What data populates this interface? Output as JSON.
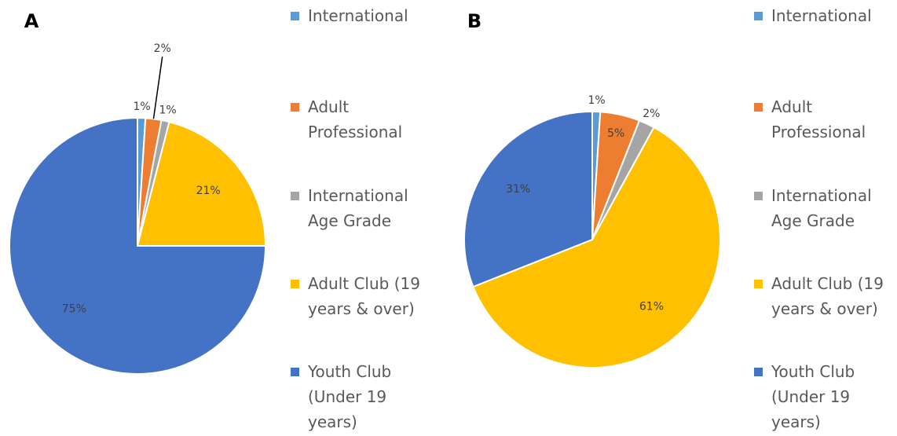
{
  "chart_data": [
    {
      "type": "pie",
      "label": "A",
      "categories": [
        "International",
        "Adult Professional",
        "International Age Grade",
        "Adult Club (19 years & over)",
        "Youth Club (Under 19 years)"
      ],
      "values": [
        1,
        2,
        1,
        21,
        75
      ],
      "value_labels": [
        "1%",
        "2%",
        "1%",
        "21%",
        "75%"
      ],
      "colors": [
        "#5b9bd5",
        "#ed7d31",
        "#a5a5a5",
        "#ffc000",
        "#4472c4"
      ]
    },
    {
      "type": "pie",
      "label": "B",
      "categories": [
        "International",
        "Adult Professional",
        "International Age Grade",
        "Adult Club (19 years & over)",
        "Youth Club (Under 19 years)"
      ],
      "values": [
        1,
        5,
        2,
        61,
        31
      ],
      "value_labels": [
        "1%",
        "5%",
        "2%",
        "61%",
        "31%"
      ],
      "colors": [
        "#5b9bd5",
        "#ed7d31",
        "#a5a5a5",
        "#ffc000",
        "#4472c4"
      ]
    }
  ]
}
